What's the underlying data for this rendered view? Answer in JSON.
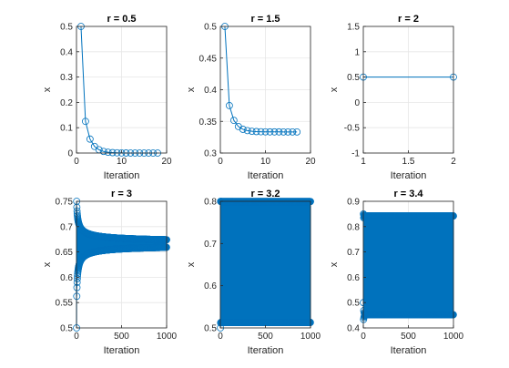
{
  "figure": {
    "background": "#ffffff",
    "series_color": "#0072BD",
    "grid_color": "#e6e6e6",
    "axis_color": "#262626"
  },
  "chart_data": [
    {
      "type": "line",
      "title": "r = 0.5",
      "xlabel": "Iteration",
      "ylabel": "x",
      "xlim": [
        0,
        20
      ],
      "ylim": [
        0,
        0.5
      ],
      "grid": true,
      "marker": "circle",
      "xticks": [
        0,
        10,
        20
      ],
      "xtick_labels": [
        "0",
        "10",
        "20"
      ],
      "yticks": [
        0,
        0.1,
        0.2,
        0.3,
        0.4,
        0.5
      ],
      "ytick_labels": [
        "0",
        "0.1",
        "0.2",
        "0.3",
        "0.4",
        "0.5"
      ],
      "x": [
        1,
        2,
        3,
        4,
        5,
        6,
        7,
        8,
        9,
        10,
        11,
        12,
        13,
        14,
        15,
        16,
        17,
        18
      ],
      "y": [
        0.5,
        0.125,
        0.055,
        0.026,
        0.013,
        0.0064,
        0.0032,
        0.0016,
        0.0008,
        0.0004,
        0.0002,
        0.0001,
        0,
        0,
        0,
        0,
        0,
        0
      ]
    },
    {
      "type": "line",
      "title": "r = 1.5",
      "xlabel": "Iteration",
      "ylabel": "x",
      "xlim": [
        0,
        20
      ],
      "ylim": [
        0.3,
        0.5
      ],
      "grid": true,
      "marker": "circle",
      "xticks": [
        0,
        10,
        20
      ],
      "xtick_labels": [
        "0",
        "10",
        "20"
      ],
      "yticks": [
        0.3,
        0.35,
        0.4,
        0.45,
        0.5
      ],
      "ytick_labels": [
        "0.3",
        "0.35",
        "0.4",
        "0.45",
        "0.5"
      ],
      "x": [
        1,
        2,
        3,
        4,
        5,
        6,
        7,
        8,
        9,
        10,
        11,
        12,
        13,
        14,
        15,
        16,
        17
      ],
      "y": [
        0.5,
        0.375,
        0.3516,
        0.3419,
        0.3375,
        0.3354,
        0.3344,
        0.3339,
        0.3336,
        0.3335,
        0.3334,
        0.3334,
        0.3334,
        0.3333,
        0.3333,
        0.3333,
        0.3333
      ]
    },
    {
      "type": "line",
      "title": "r = 2",
      "xlabel": "Iteration",
      "ylabel": "x",
      "xlim": [
        1,
        2
      ],
      "ylim": [
        -1,
        1.5
      ],
      "grid": true,
      "marker": "circle",
      "xticks": [
        1,
        1.5,
        2
      ],
      "xtick_labels": [
        "1",
        "1.5",
        "2"
      ],
      "yticks": [
        -1,
        -0.5,
        0,
        0.5,
        1,
        1.5
      ],
      "ytick_labels": [
        "-1",
        "-0.5",
        "0",
        "0.5",
        "1",
        "1.5"
      ],
      "x": [
        1,
        2
      ],
      "y": [
        0.5,
        0.5
      ]
    },
    {
      "type": "line",
      "title": "r = 3",
      "xlabel": "Iteration",
      "ylabel": "x",
      "xlim": [
        0,
        1000
      ],
      "ylim": [
        0.5,
        0.75
      ],
      "grid": true,
      "marker": "circle",
      "xticks": [
        0,
        500,
        1000
      ],
      "xtick_labels": [
        "0",
        "500",
        "1000"
      ],
      "yticks": [
        0.5,
        0.55,
        0.6,
        0.65,
        0.7,
        0.75
      ],
      "ytick_labels": [
        "0.5",
        "0.55",
        "0.6",
        "0.65",
        "0.7",
        "0.75"
      ],
      "dynamics": {
        "r": 3,
        "x0": 0.5,
        "n": 1000
      }
    },
    {
      "type": "line",
      "title": "r = 3.2",
      "xlabel": "Iteration",
      "ylabel": "x",
      "xlim": [
        0,
        1000
      ],
      "ylim": [
        0.5,
        0.8
      ],
      "grid": true,
      "marker": "circle",
      "xticks": [
        0,
        500,
        1000
      ],
      "xtick_labels": [
        "0",
        "500",
        "1000"
      ],
      "yticks": [
        0.5,
        0.6,
        0.7,
        0.8
      ],
      "ytick_labels": [
        "0.5",
        "0.6",
        "0.7",
        "0.8"
      ],
      "dynamics": {
        "r": 3.2,
        "x0": 0.5,
        "n": 1000
      }
    },
    {
      "type": "line",
      "title": "r = 3.4",
      "xlabel": "Iteration",
      "ylabel": "x",
      "xlim": [
        0,
        1000
      ],
      "ylim": [
        0.4,
        0.9
      ],
      "grid": true,
      "marker": "circle",
      "xticks": [
        0,
        500,
        1000
      ],
      "xtick_labels": [
        "0",
        "500",
        "1000"
      ],
      "yticks": [
        0.4,
        0.5,
        0.6,
        0.7,
        0.8,
        0.9
      ],
      "ytick_labels": [
        "0.4",
        "0.5",
        "0.6",
        "0.7",
        "0.8",
        "0.9"
      ],
      "dynamics": {
        "r": 3.4,
        "x0": 0.5,
        "n": 1000
      }
    }
  ]
}
